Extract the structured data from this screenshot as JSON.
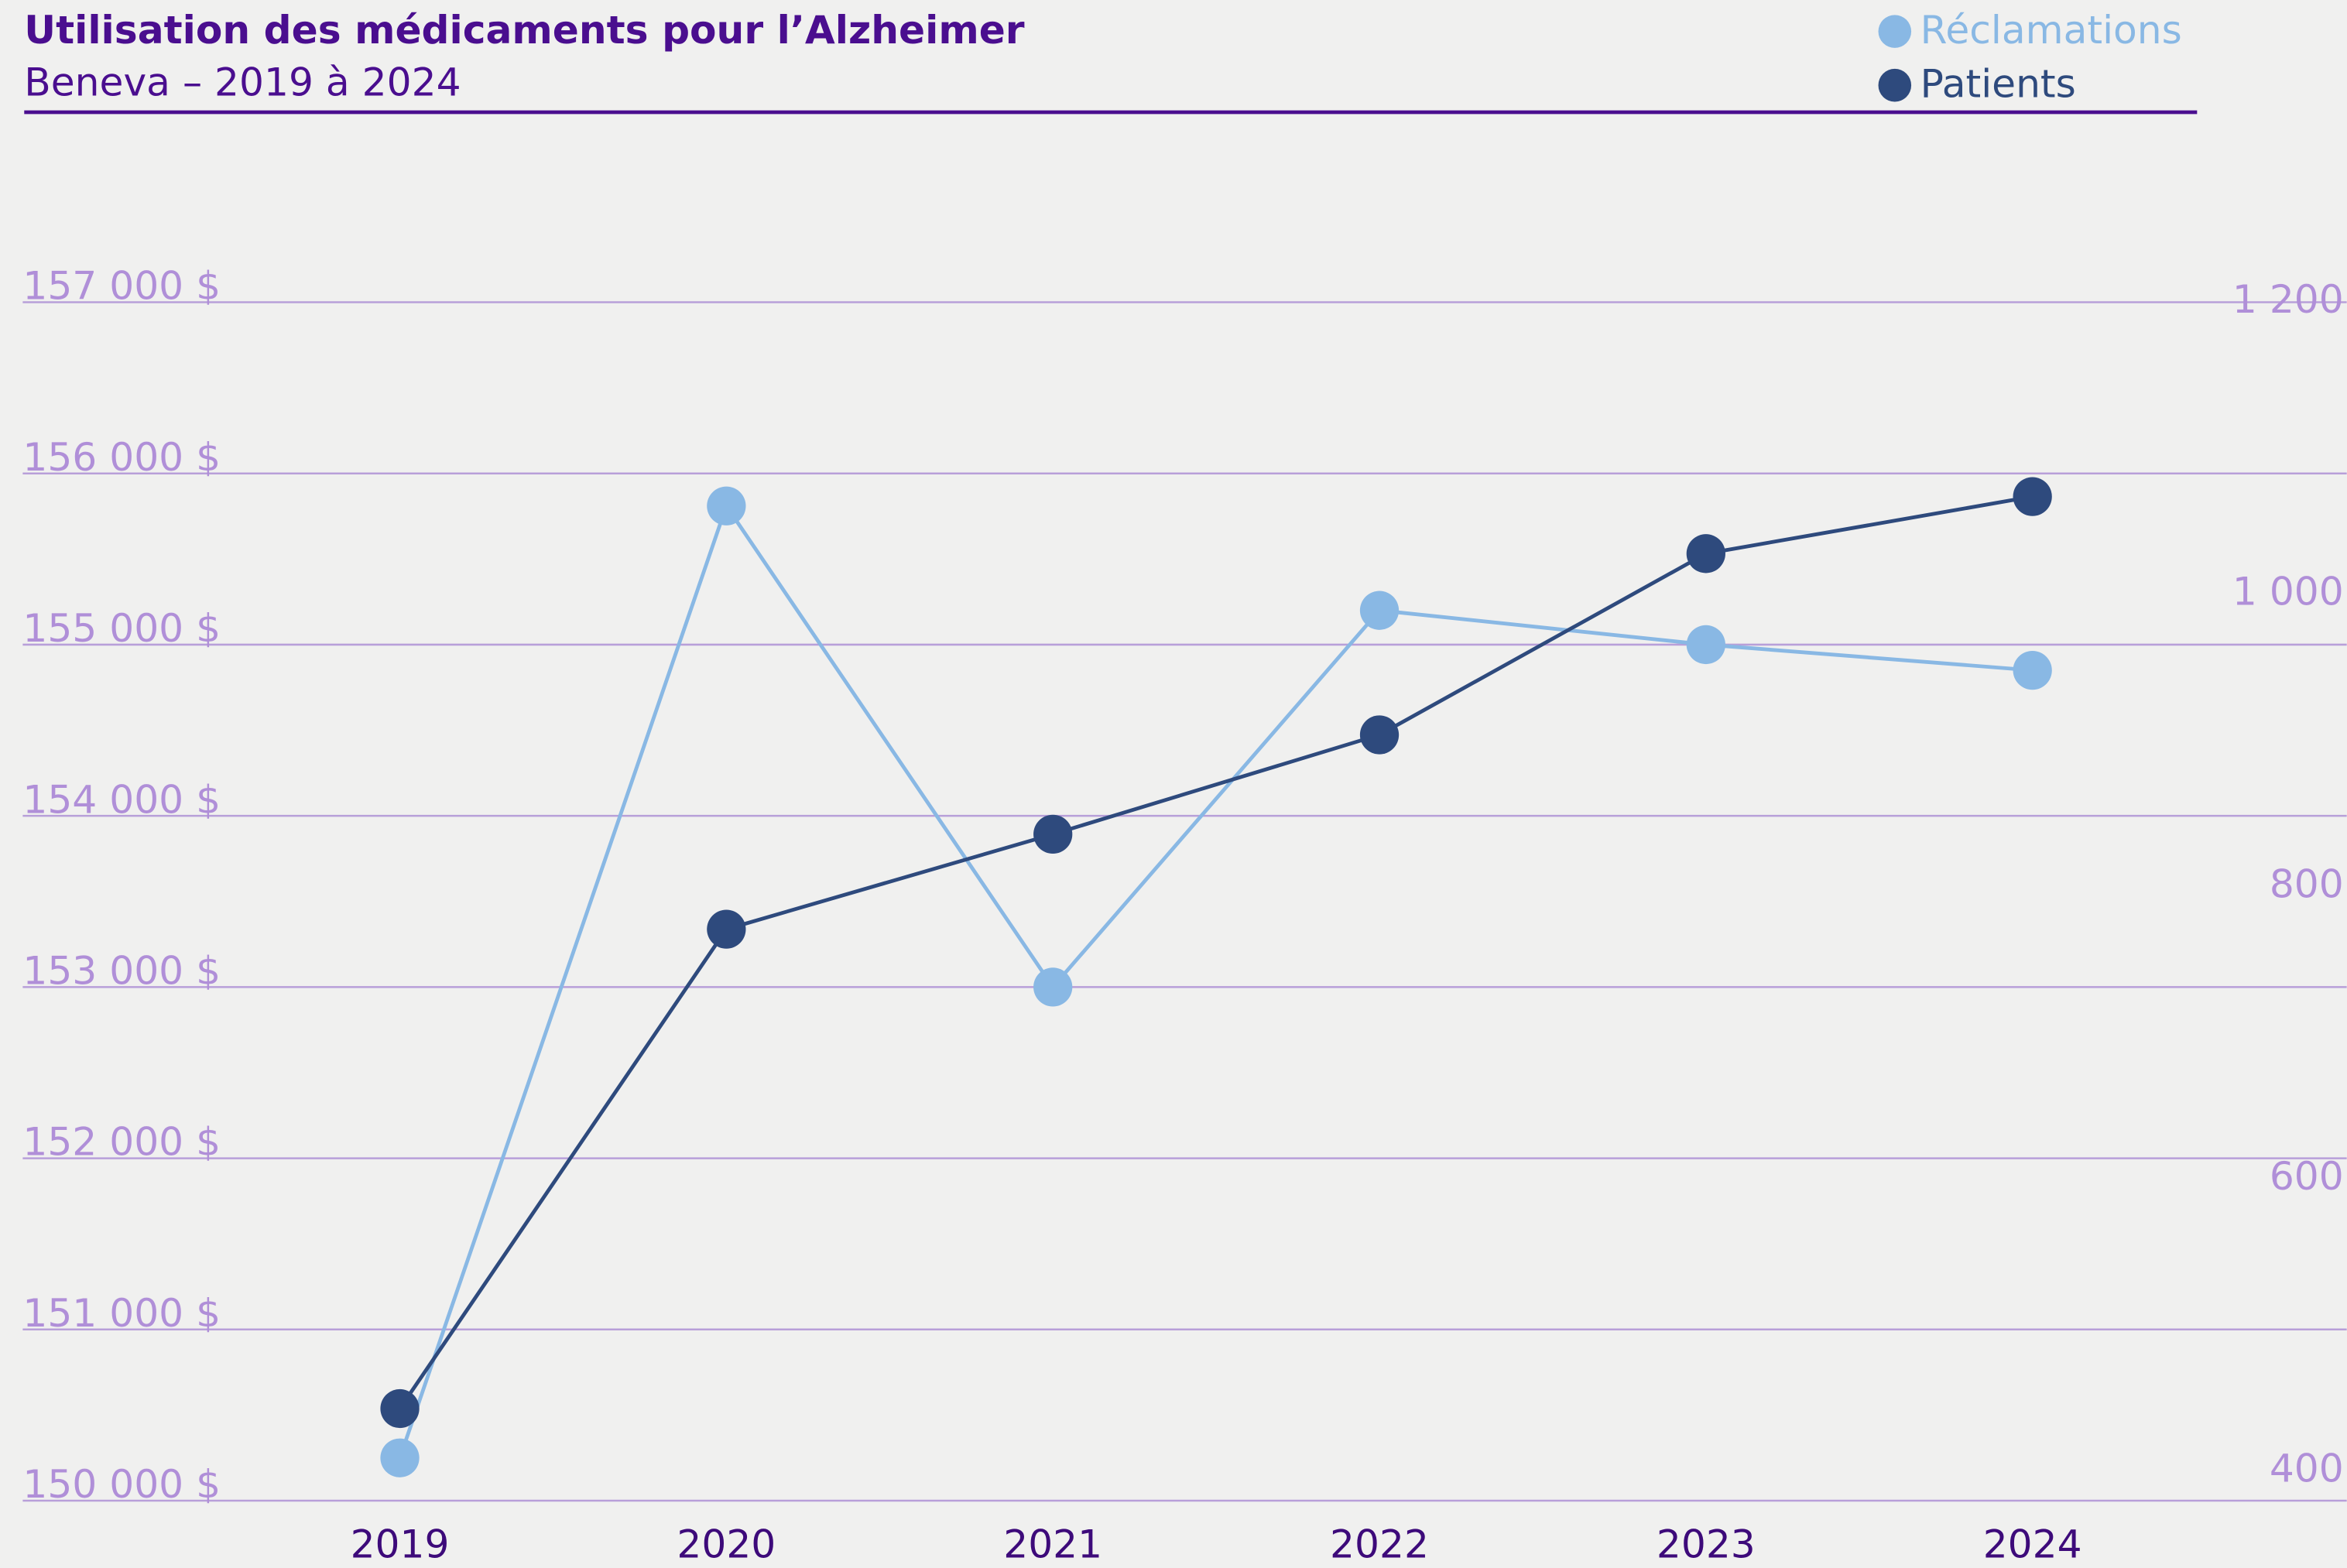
{
  "chart_data": {
    "type": "line",
    "title": "Utilisation des médicaments pour l’Alzheimer",
    "subtitle": "Beneva – 2019 à 2024",
    "categories": [
      "2019",
      "2020",
      "2021",
      "2022",
      "2023",
      "2024"
    ],
    "series": [
      {
        "name": "Réclamations",
        "color": "#89b8e4",
        "values": [
          150250,
          155810,
          153000,
          155200,
          155000,
          154850
        ]
      },
      {
        "name": "Patients",
        "color": "#2e4a7d",
        "axis": "y2",
        "values": [
          443,
          771,
          836,
          904,
          1028,
          1067
        ]
      }
    ],
    "ylim": [
      150000,
      157000
    ],
    "yticks": [
      {
        "value": 150000,
        "label": "150 000 $"
      },
      {
        "value": 151000,
        "label": "151 000 $"
      },
      {
        "value": 152000,
        "label": "152 000 $"
      },
      {
        "value": 153000,
        "label": "153 000 $"
      },
      {
        "value": 154000,
        "label": "154 000 $"
      },
      {
        "value": 155000,
        "label": "155 000 $"
      },
      {
        "value": 156000,
        "label": "156 000 $"
      },
      {
        "value": 157000,
        "label": "157 000 $"
      }
    ],
    "y2lim": [
      380,
      1200
    ],
    "y2ticks": [
      400,
      600,
      800,
      {
        "value": 1000,
        "label": "1 000"
      },
      {
        "value": 1200,
        "label": "1 200"
      }
    ],
    "grid": true
  }
}
